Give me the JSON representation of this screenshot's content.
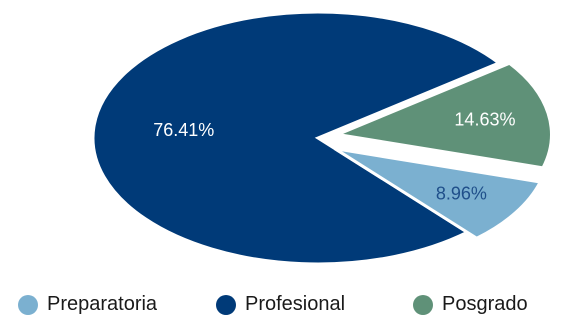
{
  "chart_data": {
    "type": "pie",
    "title": "",
    "slices": [
      {
        "label": "Profesional",
        "value": 76.41,
        "display": "76.41%",
        "color": "#003a78",
        "label_color": "#ffffff"
      },
      {
        "label": "Posgrado",
        "value": 14.63,
        "display": "14.63%",
        "color": "#5f9178",
        "label_color": "#ffffff"
      },
      {
        "label": "Preparatoria",
        "value": 8.96,
        "display": "8.96%",
        "color": "#7bb0d0",
        "label_color": "#1f4f8a"
      }
    ],
    "legend": {
      "position": "bottom",
      "items": [
        {
          "label": "Preparatoria",
          "color": "#7bb0d0"
        },
        {
          "label": "Profesional",
          "color": "#003a78"
        },
        {
          "label": "Posgrado",
          "color": "#5f9178"
        }
      ]
    }
  }
}
